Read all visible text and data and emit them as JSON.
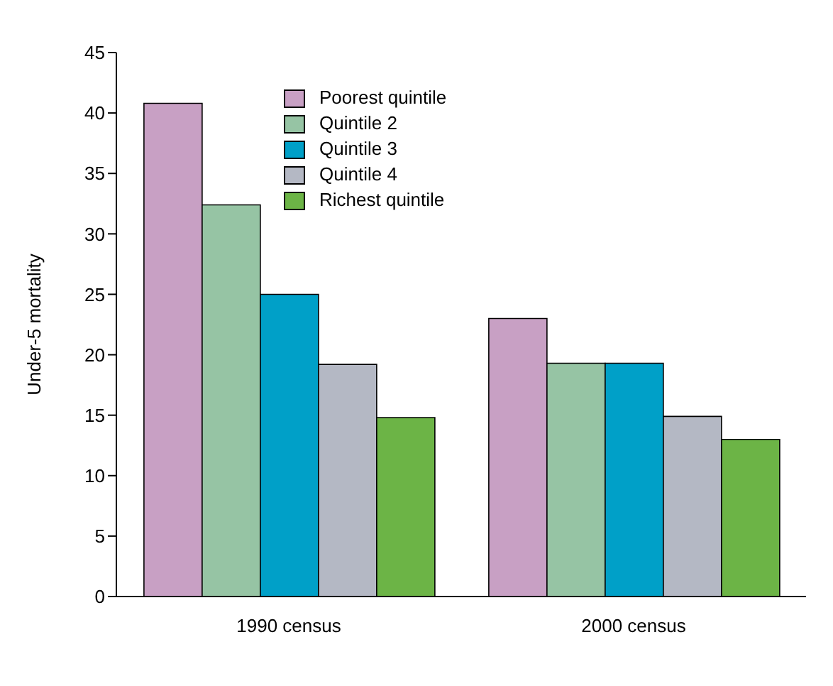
{
  "chart_data": {
    "type": "bar",
    "ylabel": "Under-5 mortality",
    "categories": [
      "1990 census",
      "2000 census"
    ],
    "series": [
      {
        "name": "Poorest quintile",
        "color": "#c8a0c4",
        "values": [
          40.8,
          23
        ]
      },
      {
        "name": "Quintile 2",
        "color": "#96c4a4",
        "values": [
          32.4,
          19.3
        ]
      },
      {
        "name": "Quintile 3",
        "color": "#00a0c8",
        "values": [
          25,
          19.3
        ]
      },
      {
        "name": "Quintile 4",
        "color": "#b4b8c4",
        "values": [
          19.2,
          14.9
        ]
      },
      {
        "name": "Richest quintile",
        "color": "#6cb446",
        "values": [
          14.8,
          13
        ]
      }
    ],
    "ylim": [
      0,
      45
    ],
    "yticks": [
      0,
      5,
      10,
      15,
      20,
      25,
      30,
      35,
      40,
      45
    ],
    "grid": false,
    "legend": "top"
  }
}
